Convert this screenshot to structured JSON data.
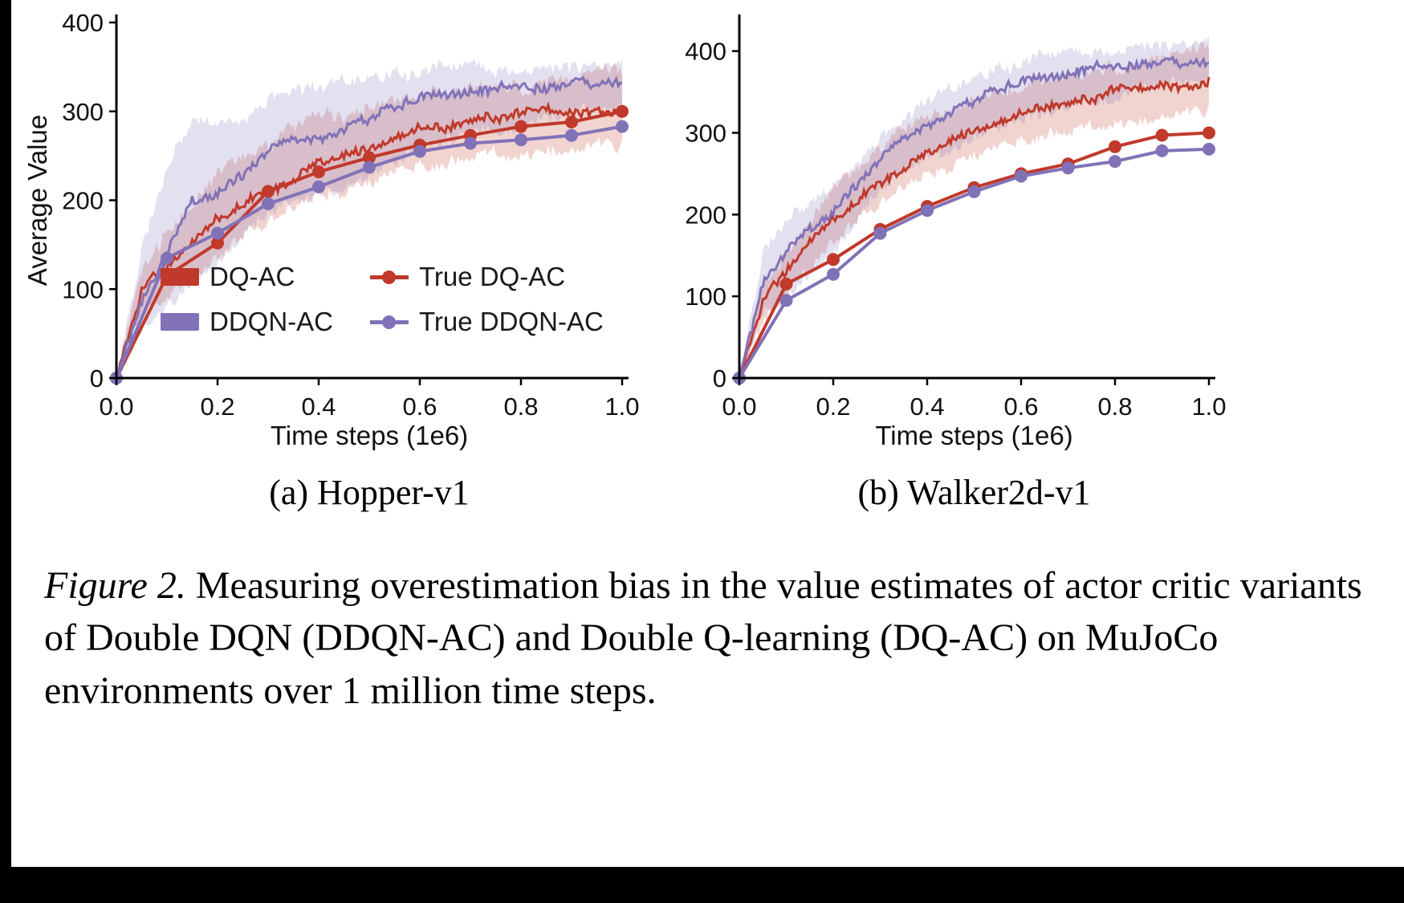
{
  "page": {
    "background": "#ffffff",
    "frame_color": "#000000"
  },
  "figure": {
    "caption_label": "Figure 2.",
    "caption_text": " Measuring overestimation bias in the value estimates of actor critic variants of Double DQN (DDQN-AC) and Double Q-learning (DQ-AC) on MuJoCo environments over 1 million time steps."
  },
  "colors": {
    "red": "#c0392b",
    "purple": "#8172b8",
    "axis": "#000000",
    "tick_text": "#111111"
  },
  "legend": {
    "position": "inside chart (a), lower center",
    "items": [
      {
        "label": "DQ-AC",
        "type": "patch",
        "color": "#c0392b"
      },
      {
        "label": "DDQN-AC",
        "type": "patch",
        "color": "#8172b8"
      },
      {
        "label": "True DQ-AC",
        "type": "marker",
        "color": "#c0392b"
      },
      {
        "label": "True DDQN-AC",
        "type": "marker",
        "color": "#8172b8"
      }
    ]
  },
  "chart_data": [
    {
      "type": "line",
      "title": "(a) Hopper-v1",
      "xlabel": "Time steps (1e6)",
      "ylabel": "Average Value",
      "xlim": [
        0,
        1.0
      ],
      "ylim": [
        0,
        400
      ],
      "xticks": [
        0,
        0.2,
        0.4,
        0.6,
        0.8,
        1.0
      ],
      "xtick_labels": [
        "0.0",
        "0.2",
        "0.4",
        "0.6",
        "0.8",
        "1.0"
      ],
      "yticks": [
        0,
        100,
        200,
        300,
        400
      ],
      "ytick_labels": [
        "0",
        "100",
        "200",
        "300",
        "400"
      ],
      "grid": false,
      "series": [
        {
          "name": "DQ-AC",
          "color": "#c0392b",
          "style": "noisy",
          "x": [
            0,
            0.05,
            0.1,
            0.15,
            0.2,
            0.25,
            0.3,
            0.35,
            0.4,
            0.45,
            0.5,
            0.55,
            0.6,
            0.65,
            0.7,
            0.75,
            0.8,
            0.85,
            0.9,
            0.95,
            1.0
          ],
          "y": [
            0,
            95,
            120,
            150,
            185,
            205,
            215,
            232,
            248,
            255,
            265,
            278,
            288,
            285,
            295,
            298,
            295,
            305,
            300,
            310,
            305
          ],
          "band_low": [
            0,
            65,
            85,
            105,
            135,
            158,
            172,
            188,
            202,
            212,
            222,
            235,
            245,
            245,
            255,
            258,
            255,
            265,
            263,
            270,
            268
          ],
          "band_high": [
            0,
            128,
            170,
            200,
            232,
            252,
            258,
            276,
            292,
            298,
            308,
            318,
            328,
            325,
            332,
            335,
            330,
            342,
            336,
            348,
            342
          ]
        },
        {
          "name": "DDQN-AC",
          "color": "#8172b8",
          "style": "noisy",
          "x": [
            0,
            0.05,
            0.1,
            0.15,
            0.2,
            0.25,
            0.3,
            0.35,
            0.4,
            0.45,
            0.5,
            0.55,
            0.6,
            0.65,
            0.7,
            0.75,
            0.8,
            0.85,
            0.9,
            0.95,
            1.0
          ],
          "y": [
            0,
            80,
            135,
            192,
            200,
            222,
            248,
            260,
            265,
            275,
            288,
            300,
            310,
            315,
            320,
            318,
            325,
            322,
            328,
            330,
            332
          ],
          "band_low": [
            0,
            50,
            88,
            118,
            138,
            162,
            180,
            196,
            206,
            220,
            235,
            250,
            265,
            275,
            283,
            283,
            290,
            290,
            295,
            297,
            300
          ],
          "band_high": [
            0,
            140,
            235,
            292,
            288,
            295,
            318,
            330,
            326,
            336,
            340,
            346,
            350,
            352,
            355,
            352,
            356,
            354,
            358,
            360,
            360
          ]
        },
        {
          "name": "True DQ-AC",
          "color": "#c0392b",
          "style": "markers",
          "x": [
            0,
            0.1,
            0.2,
            0.3,
            0.4,
            0.5,
            0.6,
            0.7,
            0.8,
            0.9,
            1.0
          ],
          "y": [
            0,
            115,
            152,
            210,
            232,
            248,
            262,
            273,
            283,
            288,
            300
          ]
        },
        {
          "name": "True DDQN-AC",
          "color": "#8172b8",
          "style": "markers",
          "x": [
            0,
            0.1,
            0.2,
            0.3,
            0.4,
            0.5,
            0.6,
            0.7,
            0.8,
            0.9,
            1.0
          ],
          "y": [
            0,
            135,
            163,
            196,
            215,
            237,
            255,
            264,
            268,
            273,
            283
          ]
        }
      ]
    },
    {
      "type": "line",
      "title": "(b) Walker2d-v1",
      "xlabel": "Time steps (1e6)",
      "ylabel": "",
      "xlim": [
        0,
        1.0
      ],
      "ylim": [
        0,
        435
      ],
      "xticks": [
        0,
        0.2,
        0.4,
        0.6,
        0.8,
        1.0
      ],
      "xtick_labels": [
        "0.0",
        "0.2",
        "0.4",
        "0.6",
        "0.8",
        "1.0"
      ],
      "yticks": [
        0,
        100,
        200,
        300,
        400
      ],
      "ytick_labels": [
        "0",
        "100",
        "200",
        "300",
        "400"
      ],
      "grid": false,
      "series": [
        {
          "name": "DQ-AC",
          "color": "#c0392b",
          "style": "noisy",
          "x": [
            0,
            0.05,
            0.1,
            0.15,
            0.2,
            0.25,
            0.3,
            0.35,
            0.4,
            0.45,
            0.5,
            0.55,
            0.6,
            0.65,
            0.7,
            0.75,
            0.8,
            0.85,
            0.9,
            0.95,
            1.0
          ],
          "y": [
            0,
            90,
            125,
            165,
            200,
            225,
            245,
            265,
            280,
            295,
            310,
            320,
            330,
            336,
            341,
            346,
            351,
            356,
            361,
            365,
            368
          ],
          "band_low": [
            0,
            60,
            95,
            132,
            166,
            190,
            210,
            230,
            245,
            260,
            275,
            286,
            296,
            302,
            307,
            312,
            317,
            322,
            327,
            331,
            335
          ],
          "band_high": [
            0,
            120,
            158,
            198,
            234,
            258,
            278,
            298,
            314,
            329,
            344,
            354,
            364,
            370,
            375,
            380,
            385,
            390,
            395,
            399,
            403
          ]
        },
        {
          "name": "DDQN-AC",
          "color": "#8172b8",
          "style": "noisy",
          "x": [
            0,
            0.05,
            0.1,
            0.15,
            0.2,
            0.25,
            0.3,
            0.35,
            0.4,
            0.45,
            0.5,
            0.55,
            0.6,
            0.65,
            0.7,
            0.75,
            0.8,
            0.85,
            0.9,
            0.95,
            1.0
          ],
          "y": [
            0,
            110,
            150,
            175,
            196,
            230,
            260,
            285,
            305,
            320,
            335,
            348,
            357,
            364,
            369,
            373,
            377,
            380,
            382,
            384,
            385
          ],
          "band_low": [
            0,
            75,
            110,
            136,
            160,
            195,
            225,
            250,
            270,
            285,
            300,
            314,
            324,
            333,
            339,
            344,
            349,
            352,
            355,
            357,
            360
          ],
          "band_high": [
            0,
            148,
            192,
            216,
            236,
            268,
            298,
            320,
            340,
            355,
            370,
            382,
            391,
            397,
            401,
            405,
            409,
            412,
            414,
            417,
            420
          ]
        },
        {
          "name": "True DQ-AC",
          "color": "#c0392b",
          "style": "markers",
          "x": [
            0,
            0.1,
            0.2,
            0.3,
            0.4,
            0.5,
            0.6,
            0.7,
            0.8,
            0.9,
            1.0
          ],
          "y": [
            0,
            115,
            145,
            182,
            210,
            233,
            250,
            262,
            283,
            297,
            300
          ]
        },
        {
          "name": "True DDQN-AC",
          "color": "#8172b8",
          "style": "markers",
          "x": [
            0,
            0.1,
            0.2,
            0.3,
            0.4,
            0.5,
            0.6,
            0.7,
            0.8,
            0.9,
            1.0
          ],
          "y": [
            0,
            95,
            127,
            177,
            205,
            228,
            247,
            257,
            265,
            278,
            280
          ]
        }
      ]
    }
  ]
}
